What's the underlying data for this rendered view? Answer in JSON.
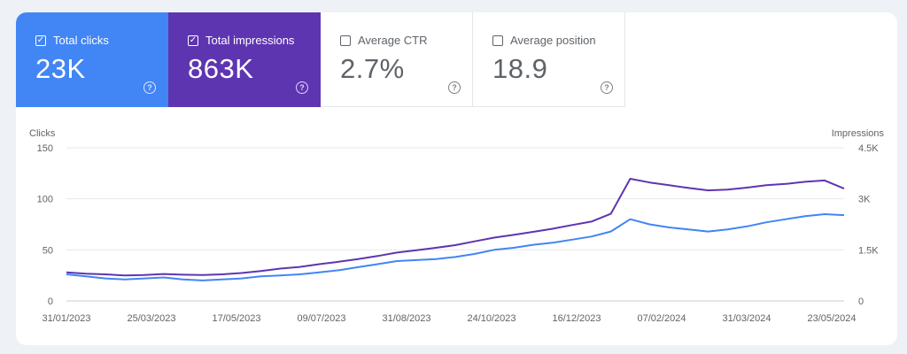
{
  "metrics": [
    {
      "label": "Total clicks",
      "value": "23K",
      "checked": true,
      "color": "#4285f4"
    },
    {
      "label": "Total impressions",
      "value": "863K",
      "checked": true,
      "color": "#5e35b1"
    },
    {
      "label": "Average CTR",
      "value": "2.7%",
      "checked": false,
      "color": "#ffffff"
    },
    {
      "label": "Average position",
      "value": "18.9",
      "checked": false,
      "color": "#ffffff"
    }
  ],
  "help_icon_glyph": "?",
  "checkmark_glyph": "✓",
  "chart_data": {
    "type": "line",
    "left_axis_label": "Clicks",
    "right_axis_label": "Impressions",
    "left_ticks": [
      "150",
      "100",
      "50",
      "0"
    ],
    "left_ylim": [
      0,
      150
    ],
    "right_ticks": [
      "4.5K",
      "3K",
      "1.5K",
      "0"
    ],
    "right_ylim": [
      0,
      4500
    ],
    "x_tick_labels": [
      "31/01/2023",
      "25/03/2023",
      "17/05/2023",
      "09/07/2023",
      "31/08/2023",
      "24/10/2023",
      "16/12/2023",
      "07/02/2024",
      "31/03/2024",
      "23/05/2024"
    ],
    "grid": true,
    "series": [
      {
        "name": "Total clicks",
        "axis": "left",
        "color": "#4285f4",
        "values": [
          26,
          24,
          22,
          21,
          22,
          23,
          21,
          20,
          21,
          22,
          24,
          25,
          26,
          28,
          30,
          33,
          36,
          39,
          40,
          41,
          43,
          46,
          50,
          52,
          55,
          57,
          60,
          63,
          68,
          80,
          75,
          72,
          70,
          68,
          70,
          73,
          77,
          80,
          83,
          85,
          84
        ]
      },
      {
        "name": "Total impressions",
        "axis": "right",
        "color": "#5e35b1",
        "values": [
          840,
          800,
          780,
          750,
          760,
          790,
          770,
          760,
          780,
          820,
          880,
          950,
          1000,
          1080,
          1150,
          1230,
          1320,
          1420,
          1490,
          1560,
          1640,
          1750,
          1860,
          1940,
          2030,
          2120,
          2230,
          2330,
          2560,
          3590,
          3480,
          3400,
          3320,
          3250,
          3270,
          3330,
          3400,
          3440,
          3500,
          3540,
          3300
        ]
      }
    ]
  }
}
